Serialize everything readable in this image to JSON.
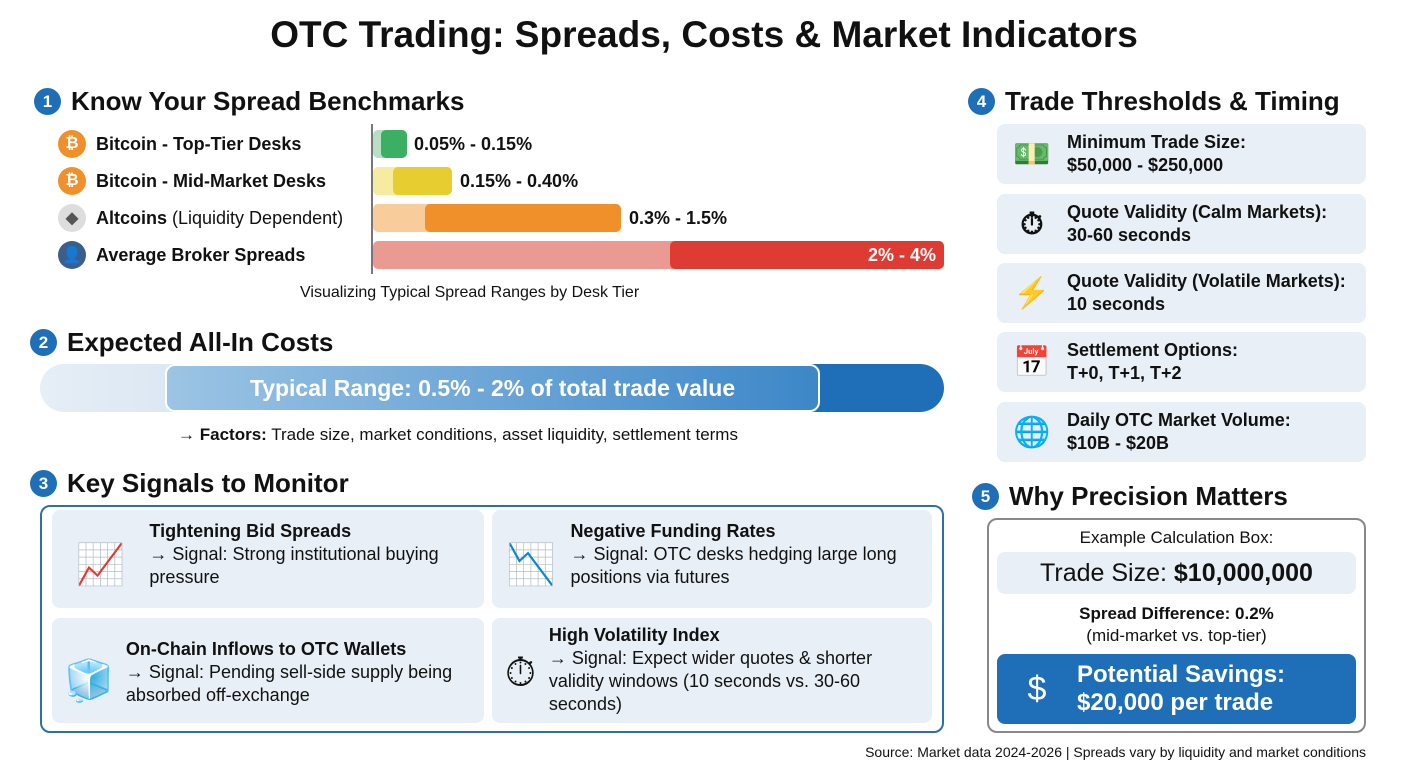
{
  "title": "OTC Trading: Spreads, Costs & Market Indicators",
  "s1": {
    "num": "1",
    "heading": "Know Your Spread Benchmarks",
    "caption": "Visualizing Typical Spread Ranges by Desk Tier"
  },
  "chart_data": {
    "type": "bar",
    "title": "",
    "categories": [
      "Bitcoin - Top-Tier Desks",
      "Bitcoin - Mid-Market Desks",
      "Altcoins (Liquidity Dependent)",
      "Average Broker Spreads"
    ],
    "ranges_percent": [
      [
        0.05,
        0.15
      ],
      [
        0.15,
        0.4
      ],
      [
        0.3,
        1.5
      ],
      [
        2,
        4
      ]
    ],
    "labels": [
      "0.05% - 0.15%",
      "0.15% - 0.40%",
      "0.3% - 1.5%",
      "2% - 4%"
    ],
    "colors": [
      "#3cb062",
      "#e8cd30",
      "#f0902a",
      "#de3b33"
    ]
  },
  "rows": [
    {
      "bold": "Bitcoin - Top-Tier Desks",
      "rest": "",
      "icon": "bitcoin-icon"
    },
    {
      "bold": "Bitcoin - Mid-Market Desks",
      "rest": "",
      "icon": "bitcoin-icon"
    },
    {
      "bold": "Altcoins",
      "rest": " (Liquidity Dependent)",
      "icon": "ethereum-icon"
    },
    {
      "bold": "Average Broker Spreads",
      "rest": "",
      "icon": "broker-icon"
    }
  ],
  "s2": {
    "num": "2",
    "heading": "Expected All-In Costs",
    "range": "Typical Range: 0.5% - 2% of total trade value",
    "factors_label": "Factors:",
    "factors": " Trade size, market conditions, asset liquidity, settlement terms",
    "arrow": "→"
  },
  "s3": {
    "num": "3",
    "heading": "Key Signals to Monitor",
    "cards": [
      {
        "title": "Tightening Bid Spreads",
        "signal": "→ Signal: Strong institutional buying pressure",
        "icon": "rising-chart-icon"
      },
      {
        "title": "Negative Funding Rates",
        "signal": "→ Signal: OTC desks hedging large long positions via futures",
        "icon": "falling-chart-icon"
      },
      {
        "title": "On-Chain Inflows to OTC Wallets",
        "signal": "→ Signal: Pending sell-side supply being absorbed off-exchange",
        "icon": "blockchain-wallet-icon"
      },
      {
        "title": "High Volatility Index",
        "signal": "→ Signal: Expect wider quotes & shorter validity windows (10 seconds vs. 30-60 seconds)",
        "icon": "volatility-clock-icon"
      }
    ]
  },
  "s4": {
    "num": "4",
    "heading": "Trade Thresholds & Timing",
    "items": [
      {
        "label": "Minimum Trade Size:",
        "value": "$50,000 - $250,000",
        "icon": "cash-icon"
      },
      {
        "label": "Quote Validity (Calm Markets):",
        "value": "30-60 seconds",
        "icon": "stopwatch-icon"
      },
      {
        "label": "Quote Validity (Volatile Markets):",
        "value": "10 seconds",
        "icon": "lightning-stopwatch-icon"
      },
      {
        "label": "Settlement Options:",
        "value": "T+0, T+1, T+2",
        "icon": "calendar-check-icon"
      },
      {
        "label": "Daily OTC Market Volume:",
        "value": "$10B - $20B",
        "icon": "globe-icon"
      }
    ]
  },
  "s5": {
    "num": "5",
    "heading": "Why Precision Matters",
    "box_title": "Example Calculation Box:",
    "trade_label": "Trade Size: ",
    "trade_value": "$10,000,000",
    "spread": "Spread Difference: 0.2%",
    "spread_note": "(mid-market vs. top-tier)",
    "savings_1": "Potential Savings:",
    "savings_2": "$20,000 per trade"
  },
  "footer": "Source: Market data 2024-2026 | Spreads vary by liquidity and market conditions"
}
